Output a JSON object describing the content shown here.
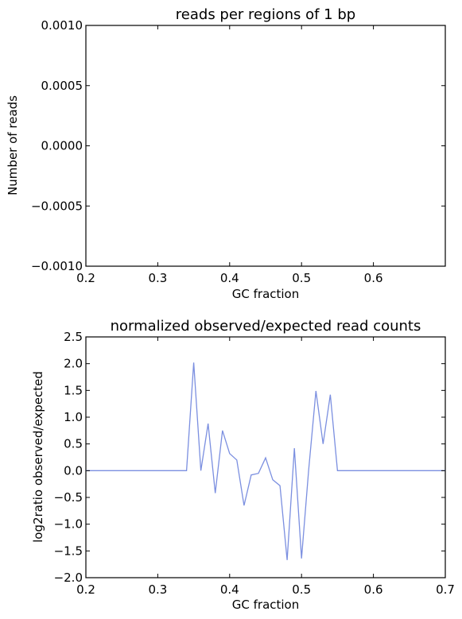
{
  "chart_data": [
    {
      "type": "line",
      "title": "reads per regions of 1 bp",
      "xlabel": "GC fraction",
      "ylabel": "Number of reads",
      "xlim": [
        0.2,
        0.7
      ],
      "ylim": [
        -0.001,
        0.001
      ],
      "xticks": [
        "0.2",
        "0.3",
        "0.4",
        "0.5",
        "0.6"
      ],
      "xtick_values": [
        0.2,
        0.3,
        0.4,
        0.5,
        0.6
      ],
      "yticks": [
        "0.0010",
        "0.0005",
        "0.0000",
        "−0.0005",
        "−0.0010"
      ],
      "ytick_values": [
        0.001,
        0.0005,
        0.0,
        -0.0005,
        -0.001
      ],
      "grid": false,
      "series": []
    },
    {
      "type": "line",
      "title": "normalized observed/expected read counts",
      "xlabel": "GC fraction",
      "ylabel": "log2ratio observed/expected",
      "xlim": [
        0.2,
        0.7
      ],
      "ylim": [
        -2.0,
        2.5
      ],
      "xticks": [
        "0.2",
        "0.3",
        "0.4",
        "0.5",
        "0.6",
        "0.7"
      ],
      "xtick_values": [
        0.2,
        0.3,
        0.4,
        0.5,
        0.6,
        0.7
      ],
      "yticks": [
        "2.5",
        "2.0",
        "1.5",
        "1.0",
        "0.5",
        "0.0",
        "−0.5",
        "−1.0",
        "−1.5",
        "−2.0"
      ],
      "ytick_values": [
        2.5,
        2.0,
        1.5,
        1.0,
        0.5,
        0.0,
        -0.5,
        -1.0,
        -1.5,
        -2.0
      ],
      "grid": false,
      "color": "#7b8fe0",
      "series": [
        {
          "x": [
            0.2,
            0.21,
            0.22,
            0.23,
            0.24,
            0.25,
            0.26,
            0.27,
            0.28,
            0.29,
            0.3,
            0.31,
            0.32,
            0.33,
            0.34,
            0.35,
            0.36,
            0.37,
            0.38,
            0.39,
            0.4,
            0.41,
            0.42,
            0.43,
            0.44,
            0.45,
            0.46,
            0.47,
            0.48,
            0.49,
            0.5,
            0.51,
            0.52,
            0.53,
            0.54,
            0.55,
            0.56,
            0.57,
            0.58,
            0.59,
            0.6,
            0.61,
            0.62,
            0.63,
            0.64,
            0.65,
            0.66,
            0.67,
            0.68,
            0.69,
            0.7
          ],
          "y": [
            0,
            0,
            0,
            0,
            0,
            0,
            0,
            0,
            0,
            0,
            0,
            0,
            0,
            0,
            0,
            2.02,
            0.0,
            0.88,
            -0.42,
            0.75,
            0.32,
            0.2,
            -0.65,
            -0.08,
            -0.05,
            0.24,
            -0.17,
            -0.28,
            -1.67,
            0.42,
            -1.64,
            0.02,
            1.49,
            0.5,
            1.42,
            0,
            0,
            0,
            0,
            0,
            0,
            0,
            0,
            0,
            0,
            0,
            0,
            0,
            0,
            0,
            0
          ]
        }
      ]
    }
  ]
}
